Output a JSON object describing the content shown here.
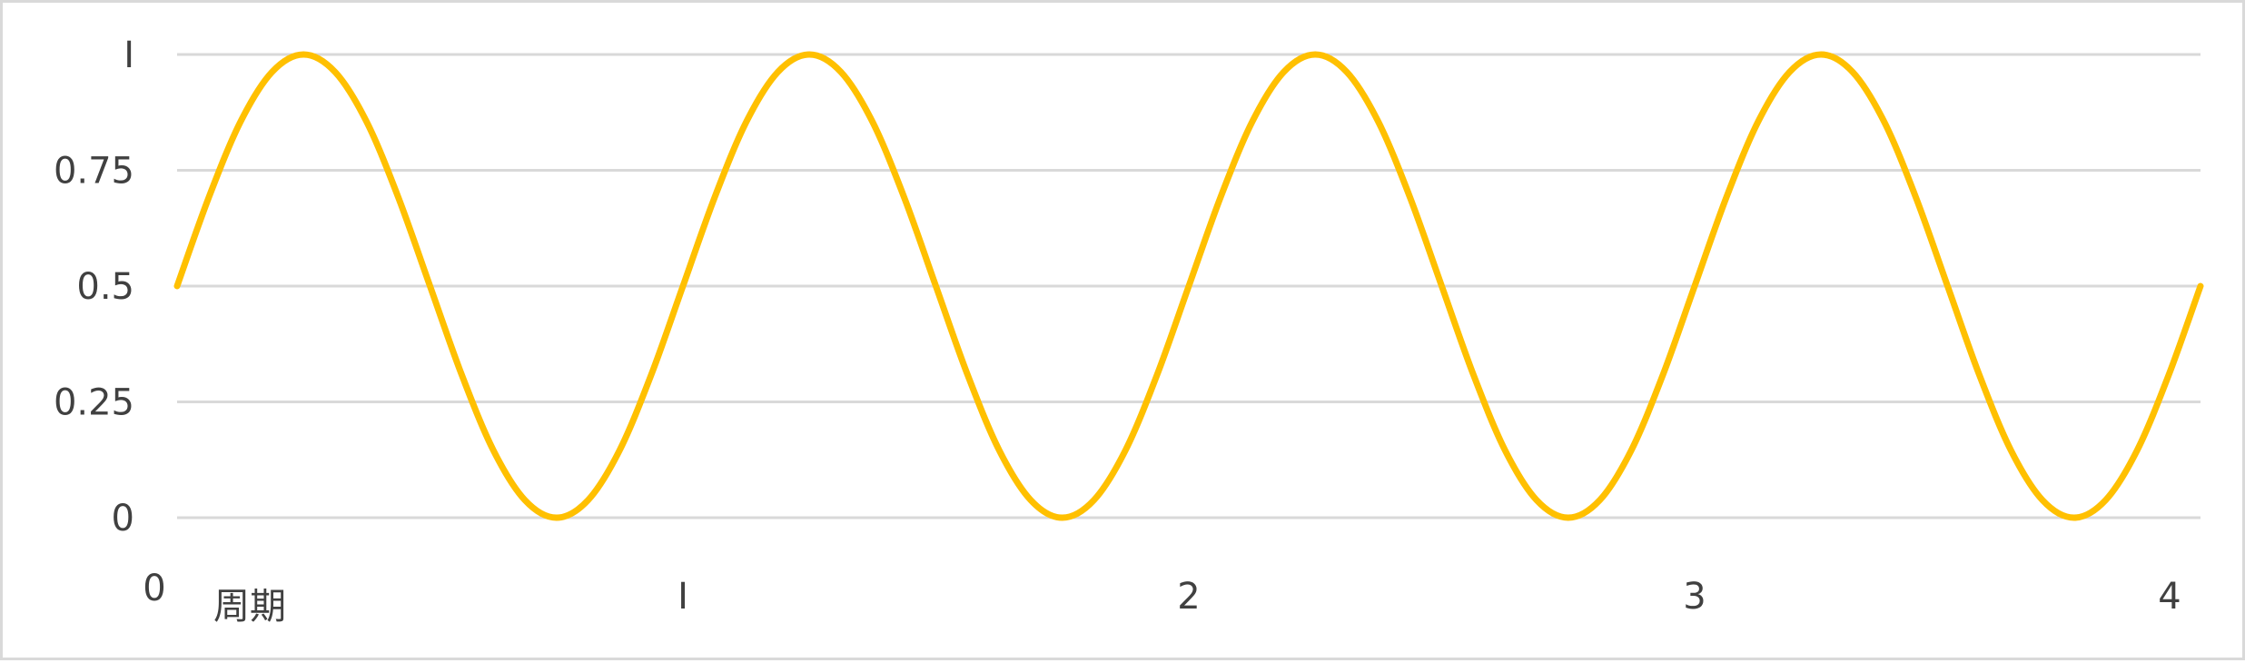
{
  "chart_data": {
    "type": "line",
    "title": "",
    "xlabel": "周期",
    "ylabel": "",
    "xlim": [
      0,
      4
    ],
    "ylim": [
      0,
      1
    ],
    "y_ticks": [
      0,
      0.25,
      0.5,
      0.75,
      1
    ],
    "y_tick_labels": [
      "0",
      "0.25",
      "0.5",
      "0.75",
      "I"
    ],
    "x_ticks": [
      0,
      1,
      2,
      3,
      4
    ],
    "x_tick_labels": [
      "0",
      "I",
      "2",
      "3",
      "4"
    ],
    "grid": true,
    "legend": "none",
    "series": [
      {
        "color": "#ffc000",
        "x": [
          0,
          0.0625,
          0.125,
          0.1875,
          0.25,
          0.3125,
          0.375,
          0.4375,
          0.5,
          0.5625,
          0.625,
          0.6875,
          0.75,
          0.8125,
          0.875,
          0.9375,
          1,
          1.0625,
          1.125,
          1.1875,
          1.25,
          1.3125,
          1.375,
          1.4375,
          1.5,
          1.5625,
          1.625,
          1.6875,
          1.75,
          1.8125,
          1.875,
          1.9375,
          2,
          2.0625,
          2.125,
          2.1875,
          2.25,
          2.3125,
          2.375,
          2.4375,
          2.5,
          2.5625,
          2.625,
          2.6875,
          2.75,
          2.8125,
          2.875,
          2.9375,
          3,
          3.0625,
          3.125,
          3.1875,
          3.25,
          3.3125,
          3.375,
          3.4375,
          3.5,
          3.5625,
          3.625,
          3.6875,
          3.75,
          3.8125,
          3.875,
          3.9375,
          4
        ],
        "y": [
          0.5,
          0.691,
          0.854,
          0.962,
          1,
          0.962,
          0.854,
          0.691,
          0.5,
          0.309,
          0.146,
          0.038,
          0,
          0.038,
          0.146,
          0.309,
          0.5,
          0.691,
          0.854,
          0.962,
          1,
          0.962,
          0.854,
          0.691,
          0.5,
          0.309,
          0.146,
          0.038,
          0,
          0.038,
          0.146,
          0.309,
          0.5,
          0.691,
          0.854,
          0.962,
          1,
          0.962,
          0.854,
          0.691,
          0.5,
          0.309,
          0.146,
          0.038,
          0,
          0.038,
          0.146,
          0.309,
          0.5,
          0.691,
          0.854,
          0.962,
          1,
          0.962,
          0.854,
          0.691,
          0.5,
          0.309,
          0.146,
          0.038,
          0,
          0.038,
          0.146,
          0.309,
          0.5
        ]
      }
    ]
  }
}
